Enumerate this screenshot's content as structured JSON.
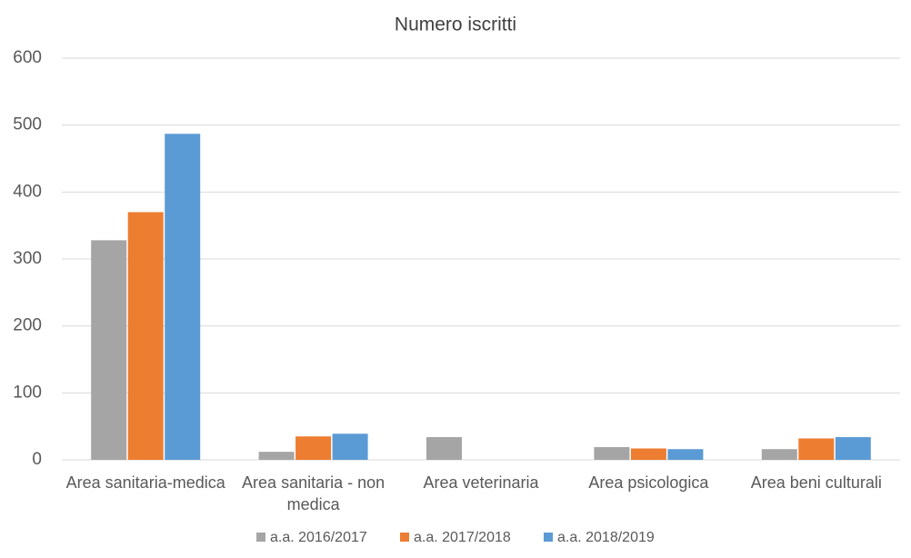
{
  "chart_data": {
    "type": "bar",
    "title": "Numero iscritti",
    "categories": [
      "Area sanitaria-medica",
      "Area sanitaria - non medica",
      "Area veterinaria",
      "Area psicologica",
      "Area beni culturali"
    ],
    "series": [
      {
        "name": "a.a. 2016/2017",
        "color": "#a5a5a5",
        "values": [
          328,
          12,
          34,
          19,
          16
        ]
      },
      {
        "name": "a.a. 2017/2018",
        "color": "#ed7d31",
        "values": [
          370,
          35,
          0,
          17,
          32
        ]
      },
      {
        "name": "a.a. 2018/2019",
        "color": "#5b9bd5",
        "values": [
          487,
          39,
          0,
          16,
          34
        ]
      }
    ],
    "ylim": [
      0,
      600
    ],
    "yticks": [
      0,
      100,
      200,
      300,
      400,
      500,
      600
    ],
    "grid": true,
    "legend": "bottom"
  }
}
